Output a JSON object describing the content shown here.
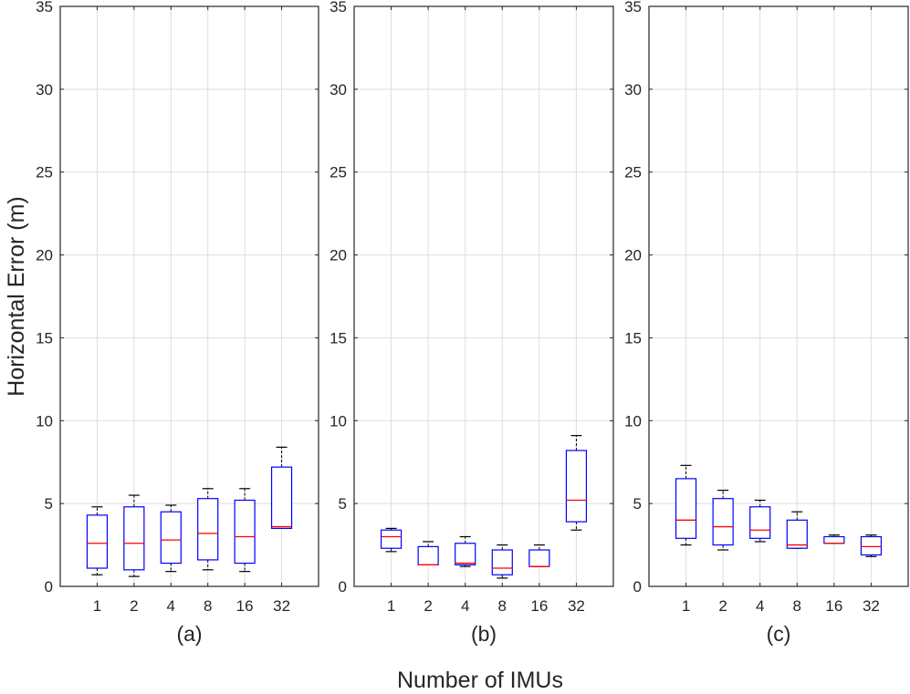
{
  "chart_data": {
    "type": "boxplot",
    "ylabel": "Horizontal Error (m)",
    "xlabel": "Number of IMUs",
    "ylim": [
      0,
      35
    ],
    "yticks": [
      "0",
      "5",
      "10",
      "15",
      "20",
      "25",
      "30",
      "35"
    ],
    "categories": [
      "1",
      "2",
      "4",
      "8",
      "16",
      "32"
    ],
    "grid": true,
    "panels": [
      {
        "label": "(a)",
        "boxes": [
          {
            "whisker_low": 0.7,
            "q1": 1.1,
            "median": 2.6,
            "q3": 4.3,
            "whisker_high": 4.8
          },
          {
            "whisker_low": 0.6,
            "q1": 1.0,
            "median": 2.6,
            "q3": 4.8,
            "whisker_high": 5.5
          },
          {
            "whisker_low": 0.9,
            "q1": 1.4,
            "median": 2.8,
            "q3": 4.5,
            "whisker_high": 4.9
          },
          {
            "whisker_low": 1.0,
            "q1": 1.6,
            "median": 3.2,
            "q3": 5.3,
            "whisker_high": 5.9
          },
          {
            "whisker_low": 0.9,
            "q1": 1.4,
            "median": 3.0,
            "q3": 5.2,
            "whisker_high": 5.9
          },
          {
            "whisker_low": 3.5,
            "q1": 3.5,
            "median": 3.6,
            "q3": 7.2,
            "whisker_high": 8.4
          }
        ]
      },
      {
        "label": "(b)",
        "boxes": [
          {
            "whisker_low": 2.1,
            "q1": 2.3,
            "median": 3.0,
            "q3": 3.4,
            "whisker_high": 3.5
          },
          {
            "whisker_low": 1.3,
            "q1": 1.3,
            "median": 1.3,
            "q3": 2.4,
            "whisker_high": 2.7
          },
          {
            "whisker_low": 1.2,
            "q1": 1.3,
            "median": 1.4,
            "q3": 2.6,
            "whisker_high": 3.0
          },
          {
            "whisker_low": 0.5,
            "q1": 0.7,
            "median": 1.1,
            "q3": 2.2,
            "whisker_high": 2.5
          },
          {
            "whisker_low": 1.2,
            "q1": 1.2,
            "median": 1.2,
            "q3": 2.2,
            "whisker_high": 2.5
          },
          {
            "whisker_low": 3.4,
            "q1": 3.9,
            "median": 5.2,
            "q3": 8.2,
            "whisker_high": 9.1
          }
        ]
      },
      {
        "label": "(c)",
        "boxes": [
          {
            "whisker_low": 2.5,
            "q1": 2.9,
            "median": 4.0,
            "q3": 6.5,
            "whisker_high": 7.3
          },
          {
            "whisker_low": 2.2,
            "q1": 2.5,
            "median": 3.6,
            "q3": 5.3,
            "whisker_high": 5.8
          },
          {
            "whisker_low": 2.7,
            "q1": 2.9,
            "median": 3.4,
            "q3": 4.8,
            "whisker_high": 5.2
          },
          {
            "whisker_low": 2.3,
            "q1": 2.3,
            "median": 2.5,
            "q3": 4.0,
            "whisker_high": 4.5
          },
          {
            "whisker_low": 2.6,
            "q1": 2.6,
            "median": 2.6,
            "q3": 3.0,
            "whisker_high": 3.1
          },
          {
            "whisker_low": 1.8,
            "q1": 1.9,
            "median": 2.4,
            "q3": 3.0,
            "whisker_high": 3.1
          }
        ]
      }
    ]
  },
  "colors": {
    "box": "#0000ff",
    "median": "#ff0000",
    "whisker": "#000000",
    "grid": "#dddddd",
    "axis": "#262626"
  }
}
